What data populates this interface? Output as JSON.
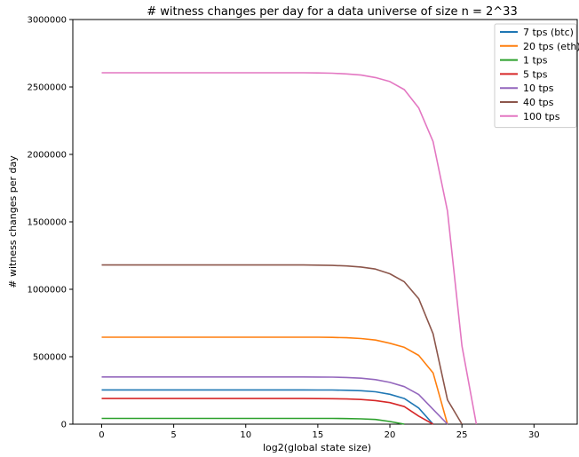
{
  "chart_data": {
    "type": "line",
    "title": "# witness changes per day for a data universe of size n = 2^33",
    "xlabel": "log2(global state size)",
    "ylabel": "# witness changes per day",
    "xlim": [
      -2,
      33
    ],
    "ylim": [
      0,
      3000000
    ],
    "x_ticks": [
      0,
      5,
      10,
      15,
      20,
      25,
      30
    ],
    "y_ticks": [
      0,
      500000,
      1000000,
      1500000,
      2000000,
      2500000,
      3000000
    ],
    "grid": false,
    "legend_position": "top-right",
    "x": [
      0,
      1,
      2,
      3,
      4,
      5,
      6,
      7,
      8,
      9,
      10,
      11,
      12,
      13,
      14,
      15,
      16,
      17,
      18,
      19,
      20,
      21,
      22,
      23,
      24,
      25,
      26,
      27,
      28,
      29,
      30,
      31,
      32,
      33
    ],
    "series": [
      {
        "name": "7 tps (btc)",
        "color": "#1f77b4",
        "values": [
          254000,
          254000,
          254000,
          254000,
          254000,
          254000,
          254000,
          254000,
          254000,
          254000,
          254000,
          254000,
          254000,
          254000,
          254000,
          253500,
          253000,
          251500,
          248000,
          240000,
          222000,
          190000,
          120000,
          0,
          0,
          0,
          0,
          0,
          0,
          0,
          0,
          0,
          0,
          0
        ]
      },
      {
        "name": "20 tps (eth)",
        "color": "#ff7f0e",
        "values": [
          645000,
          645000,
          645000,
          645000,
          645000,
          645000,
          645000,
          645000,
          645000,
          645000,
          645000,
          645000,
          645000,
          645000,
          645000,
          644500,
          643500,
          641000,
          635000,
          624000,
          600000,
          570000,
          510000,
          380000,
          0,
          0,
          0,
          0,
          0,
          0,
          0,
          0,
          0,
          0
        ]
      },
      {
        "name": "1 tps",
        "color": "#2ca02c",
        "values": [
          43000,
          43000,
          43000,
          43000,
          43000,
          43000,
          43000,
          43000,
          43000,
          43000,
          43000,
          43000,
          43000,
          43000,
          43000,
          42800,
          42500,
          41500,
          39500,
          35000,
          20000,
          0,
          0,
          0,
          0,
          0,
          0,
          0,
          0,
          0,
          0,
          0,
          0,
          0
        ]
      },
      {
        "name": "5 tps",
        "color": "#d62728",
        "values": [
          190000,
          190000,
          190000,
          190000,
          190000,
          190000,
          190000,
          190000,
          190000,
          190000,
          190000,
          190000,
          190000,
          190000,
          190000,
          189500,
          189000,
          187000,
          183000,
          175000,
          160000,
          130000,
          60000,
          0,
          0,
          0,
          0,
          0,
          0,
          0,
          0,
          0,
          0,
          0
        ]
      },
      {
        "name": "10 tps",
        "color": "#9467bd",
        "values": [
          350000,
          350000,
          350000,
          350000,
          350000,
          350000,
          350000,
          350000,
          350000,
          350000,
          350000,
          350000,
          350000,
          350000,
          350000,
          349500,
          348500,
          346000,
          341000,
          330000,
          310000,
          278000,
          220000,
          110000,
          0,
          0,
          0,
          0,
          0,
          0,
          0,
          0,
          0,
          0
        ]
      },
      {
        "name": "40 tps",
        "color": "#8c564b",
        "values": [
          1180000,
          1180000,
          1180000,
          1180000,
          1180000,
          1180000,
          1180000,
          1180000,
          1180000,
          1180000,
          1180000,
          1180000,
          1180000,
          1180000,
          1180000,
          1179000,
          1177000,
          1173000,
          1165000,
          1150000,
          1115000,
          1055000,
          930000,
          670000,
          180000,
          0,
          0,
          0,
          0,
          0,
          0,
          0,
          0,
          0
        ]
      },
      {
        "name": "100 tps",
        "color": "#e377c2",
        "values": [
          2605000,
          2605000,
          2605000,
          2605000,
          2605000,
          2605000,
          2605000,
          2605000,
          2605000,
          2605000,
          2605000,
          2605000,
          2605000,
          2605000,
          2605000,
          2604000,
          2602000,
          2597000,
          2588000,
          2570000,
          2540000,
          2480000,
          2345000,
          2095000,
          1580000,
          580000,
          0,
          0,
          0,
          0,
          0,
          0,
          0,
          0
        ]
      }
    ]
  }
}
